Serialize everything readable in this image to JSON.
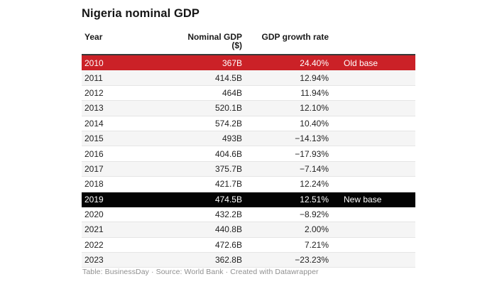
{
  "title": "Nigeria nominal GDP",
  "footer": "Table: BusinessDay · Source: World Bank · Created with Datawrapper",
  "chart_data": {
    "type": "table",
    "title": "Nigeria nominal GDP",
    "columns": [
      "Year",
      "Nominal GDP ($)",
      "GDP growth rate"
    ],
    "rows": [
      {
        "year": "2010",
        "gdp": "367B",
        "growth": "24.40%",
        "note": "Old base",
        "highlight": "red"
      },
      {
        "year": "2011",
        "gdp": "414.5B",
        "growth": "12.94%"
      },
      {
        "year": "2012",
        "gdp": "464B",
        "growth": "11.94%"
      },
      {
        "year": "2013",
        "gdp": "520.1B",
        "growth": "12.10%"
      },
      {
        "year": "2014",
        "gdp": "574.2B",
        "growth": "10.40%"
      },
      {
        "year": "2015",
        "gdp": "493B",
        "growth": "−14.13%"
      },
      {
        "year": "2016",
        "gdp": "404.6B",
        "growth": "−17.93%"
      },
      {
        "year": "2017",
        "gdp": "375.7B",
        "growth": "−7.14%"
      },
      {
        "year": "2018",
        "gdp": "421.7B",
        "growth": "12.24%"
      },
      {
        "year": "2019",
        "gdp": "474.5B",
        "growth": "12.51%",
        "note": "New base",
        "highlight": "black"
      },
      {
        "year": "2020",
        "gdp": "432.2B",
        "growth": "−8.92%"
      },
      {
        "year": "2021",
        "gdp": "440.8B",
        "growth": "2.00%"
      },
      {
        "year": "2022",
        "gdp": "472.6B",
        "growth": "7.21%"
      },
      {
        "year": "2023",
        "gdp": "362.8B",
        "growth": "−23.23%"
      }
    ],
    "annotations": [
      {
        "row": "2010",
        "label": "Old base",
        "color": "#cb2127"
      },
      {
        "row": "2019",
        "label": "New base",
        "color": "#040404"
      }
    ],
    "colors": {
      "old_base_row": "#cb2127",
      "new_base_row": "#040404",
      "stripe_row": "#f5f5f5",
      "header_border": "#383838",
      "footer_text": "#8f8f8f"
    }
  }
}
